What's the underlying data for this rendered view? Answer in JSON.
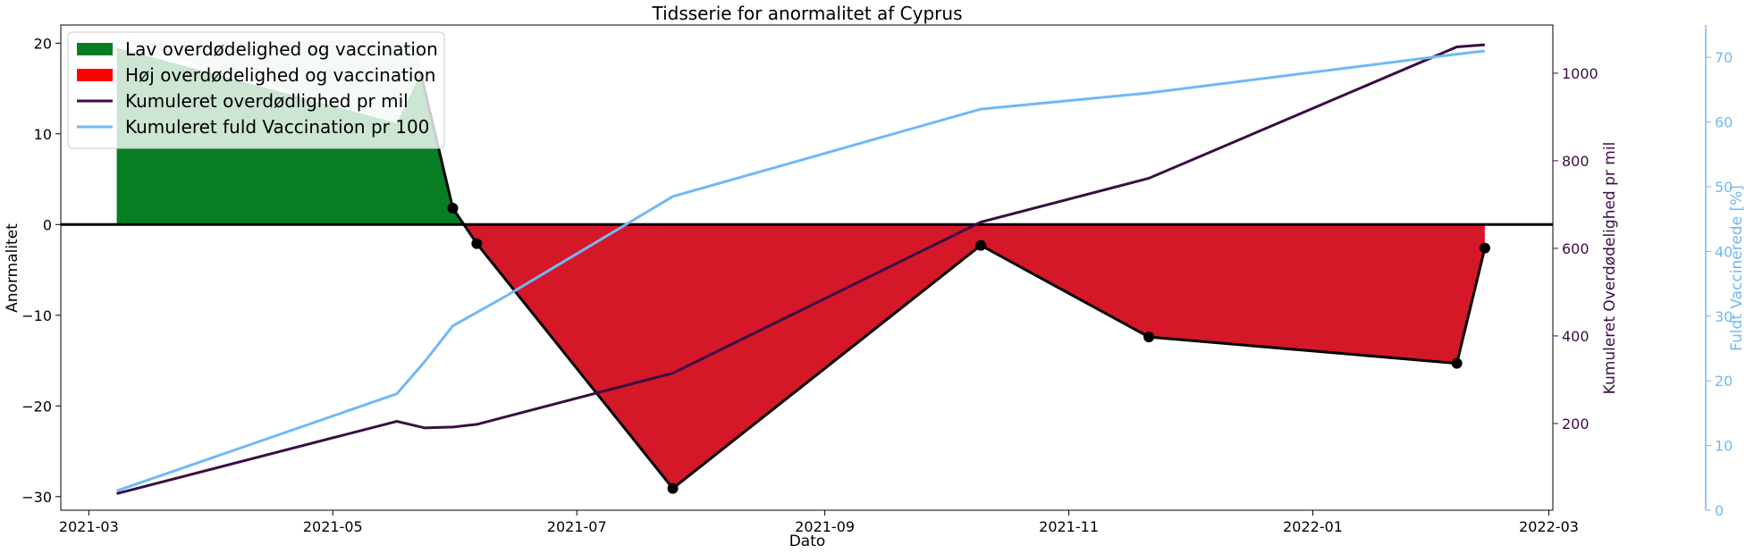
{
  "chart_data": {
    "type": "line",
    "title": "Tidsserie for anormalitet af Cyprus",
    "xlabel": "Dato",
    "x_ticks": [
      "2021-03",
      "2021-05",
      "2021-07",
      "2021-09",
      "2021-11",
      "2022-01",
      "2022-03"
    ],
    "x_range": [
      "2021-02-22",
      "2022-03-02"
    ],
    "axes": {
      "left": {
        "label": "Anormalitet",
        "range": [
          -31.5,
          22
        ],
        "ticks": [
          20,
          10,
          0,
          -10,
          -20,
          -30
        ]
      },
      "right1": {
        "label": "Kumuleret Overdødelighed pr mil",
        "range": [
          2,
          1110
        ],
        "ticks": [
          200,
          400,
          600,
          800,
          1000
        ],
        "color": "#3b0d44"
      },
      "right2": {
        "label": "Fuldt Vaccinerede [%]",
        "range": [
          0,
          75
        ],
        "ticks": [
          0,
          10,
          20,
          30,
          40,
          50,
          60,
          70
        ],
        "color": "#72b8f5"
      }
    },
    "series": [
      {
        "name": "Anormalitet",
        "axis": "left",
        "x": [
          "2021-03-08",
          "2021-05-17",
          "2021-05-23",
          "2021-05-31",
          "2021-06-06",
          "2021-07-25",
          "2021-10-10",
          "2021-11-21",
          "2022-02-06",
          "2022-02-13"
        ],
        "y": [
          19.5,
          11.2,
          16.7,
          1.8,
          -2.1,
          -29.1,
          -2.3,
          -12.4,
          -15.3,
          -2.6
        ],
        "markers": [
          false,
          false,
          false,
          true,
          true,
          true,
          true,
          true,
          true,
          true
        ]
      },
      {
        "name": "Kumuleret overdødlighed pr mil",
        "axis": "right1",
        "x": [
          "2021-03-08",
          "2021-05-17",
          "2021-05-24",
          "2021-05-31",
          "2021-06-06",
          "2021-07-25",
          "2021-10-10",
          "2021-11-21",
          "2022-02-06",
          "2022-02-13"
        ],
        "y": [
          40,
          205,
          190,
          192,
          198,
          315,
          660,
          760,
          1060,
          1065
        ]
      },
      {
        "name": "Kumuleret fuld Vaccination pr 100",
        "axis": "right2",
        "x": [
          "2021-03-08",
          "2021-05-17",
          "2021-05-24",
          "2021-05-31",
          "2021-06-13",
          "2021-07-25",
          "2021-10-10",
          "2021-11-21",
          "2022-02-06",
          "2022-02-13"
        ],
        "y": [
          3,
          18,
          23,
          28.5,
          33,
          48.5,
          62,
          64.5,
          70.5,
          71
        ]
      }
    ],
    "fills": [
      {
        "name": "Lav overdødelighed og vaccination",
        "color": "#077d24",
        "where": "above_zero"
      },
      {
        "name": "Høj overdødelighed og vaccination",
        "color": "#d41828",
        "where": "below_zero"
      }
    ],
    "legend": {
      "placement": "top-left",
      "entries": [
        {
          "label": "Lav overdødelighed og vaccination",
          "kind": "patch",
          "color": "#077d24"
        },
        {
          "label": "Høj overdødelighed og vaccination",
          "kind": "patch",
          "color": "#ff0000"
        },
        {
          "label": "Kumuleret overdødlighed pr mil",
          "kind": "line",
          "color": "#3b0d44"
        },
        {
          "label": "Kumuleret fuld Vaccination pr 100",
          "kind": "line",
          "color": "#72b8f5"
        }
      ]
    },
    "grid": false
  }
}
